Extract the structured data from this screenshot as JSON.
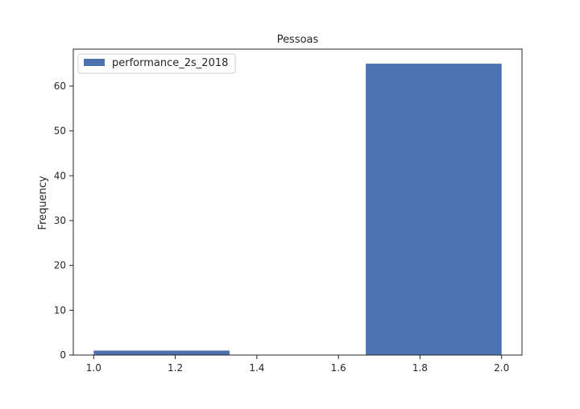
{
  "chart_data": {
    "type": "bar",
    "title": "Pessoas",
    "xlabel": "",
    "ylabel": "Frequency",
    "xlim": [
      0.95,
      2.05
    ],
    "ylim": [
      0,
      68.25
    ],
    "xticks": [
      1.0,
      1.2,
      1.4,
      1.6,
      1.8,
      2.0
    ],
    "xtick_labels": [
      "1.0",
      "1.2",
      "1.4",
      "1.6",
      "1.8",
      "2.0"
    ],
    "yticks": [
      0,
      10,
      20,
      30,
      40,
      50,
      60
    ],
    "ytick_labels": [
      "0",
      "10",
      "20",
      "30",
      "40",
      "50",
      "60"
    ],
    "grid": false,
    "legend_position": "top-left",
    "bar_color": "#4c72b0",
    "series": [
      {
        "name": "performance_2s_2018",
        "bins": [
          {
            "x_start": 1.0,
            "x_end": 1.333,
            "value": 1
          },
          {
            "x_start": 1.667,
            "x_end": 2.0,
            "value": 65
          }
        ]
      }
    ]
  }
}
